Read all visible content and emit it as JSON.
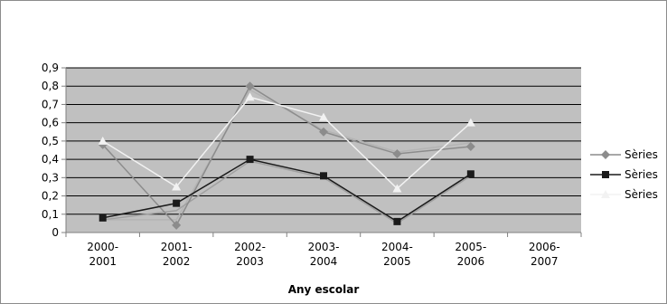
{
  "chart_data": {
    "type": "line",
    "categories": [
      "2000-\n2001",
      "2001-\n2002",
      "2002-\n2003",
      "2003-\n2004",
      "2004-\n2005",
      "2005-\n2006",
      "2006-\n2007"
    ],
    "ylim": [
      0,
      0.9
    ],
    "yticks": [
      "0",
      "0,1",
      "0,2",
      "0,3",
      "0,4",
      "0,5",
      "0,6",
      "0,7",
      "0,8",
      "0,9"
    ],
    "xlabel": "Any escolar",
    "ylabel": "",
    "title": "",
    "grid": true,
    "legend_position": "right",
    "series": [
      {
        "name": "Sèries",
        "color": "#8c8c8c",
        "marker": "diamond",
        "values": [
          0.48,
          0.04,
          0.8,
          0.55,
          0.43,
          0.47,
          null
        ]
      },
      {
        "name": "Sèries",
        "color": "#1a1a1a",
        "marker": "square",
        "values": [
          0.08,
          0.16,
          0.4,
          0.31,
          0.06,
          0.32,
          null
        ]
      },
      {
        "name": "Sèries",
        "color": "#f2f2f2",
        "marker": "triangle",
        "values": [
          0.5,
          0.25,
          0.74,
          0.63,
          0.24,
          0.6,
          null
        ]
      }
    ],
    "extra_lines": [
      {
        "color": "#b4b4b4",
        "values": [
          0.07,
          0.07,
          0.78,
          0.56,
          0.44,
          0.49,
          null
        ]
      },
      {
        "color": "#a0a0a0",
        "values": [
          0.07,
          0.12,
          0.39,
          0.3,
          0.05,
          0.31,
          null
        ]
      }
    ],
    "colors": {
      "plot_background": "#c0c0c0",
      "gridline": "#000000",
      "axis": "#808080"
    }
  }
}
